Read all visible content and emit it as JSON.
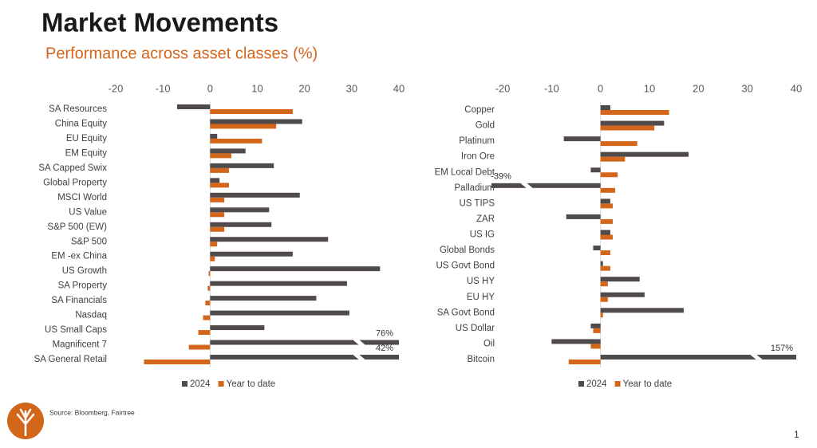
{
  "header": {
    "title": "Market Movements",
    "subtitle": "Performance across asset classes (%)"
  },
  "source": "Source: Bloomberg, Fairtree",
  "page_number": "1",
  "chart_data": [
    {
      "type": "hbar",
      "categories": [
        "SA Resources",
        "China Equity",
        "EU Equity",
        "EM Equity",
        "SA Capped Swix",
        "Global Property",
        "MSCI World",
        "US Value",
        "S&P 500 (EW)",
        "S&P 500",
        "EM -ex China",
        "US Growth",
        "SA Property",
        "SA Financials",
        "Nasdaq",
        "US Small Caps",
        "Magnificent 7",
        "SA General Retail"
      ],
      "series": [
        {
          "name": "2024",
          "color": "#504a4b",
          "values": [
            -7,
            19.5,
            1.5,
            7.5,
            13.5,
            2,
            19,
            12.5,
            13,
            25,
            17.5,
            36,
            29,
            22.5,
            29.5,
            11.5,
            76,
            42
          ],
          "value_labels": [
            null,
            null,
            null,
            null,
            null,
            null,
            null,
            null,
            null,
            null,
            null,
            null,
            null,
            null,
            null,
            null,
            "76%",
            "42%"
          ]
        },
        {
          "name": "Year to date",
          "color": "#d4661c",
          "values": [
            17.5,
            14,
            11,
            4.5,
            4,
            4,
            3,
            3,
            3,
            1.5,
            1,
            -0.3,
            -0.5,
            -1,
            -1.5,
            -2.5,
            -4.5,
            -14
          ]
        }
      ],
      "xlim": [
        -20,
        40
      ],
      "xticks": [
        -20,
        -10,
        0,
        10,
        20,
        30,
        40
      ]
    },
    {
      "type": "hbar",
      "categories": [
        "Copper",
        "Gold",
        "Platinum",
        "Iron Ore",
        "EM Local Debt",
        "Palladium",
        "US TIPS",
        "ZAR",
        "US IG",
        "Global Bonds",
        "US Govt Bond",
        "US HY",
        "EU HY",
        "SA Govt Bond",
        "US Dollar",
        "Oil",
        "Bitcoin"
      ],
      "series": [
        {
          "name": "2024",
          "color": "#504a4b",
          "values": [
            2,
            13,
            -7.5,
            18,
            -2,
            -39,
            2,
            -7,
            2,
            -1.5,
            0.5,
            8,
            9,
            17,
            -2,
            -10,
            157
          ],
          "value_labels": [
            null,
            null,
            null,
            null,
            null,
            "-39%",
            null,
            null,
            null,
            null,
            null,
            null,
            null,
            null,
            null,
            null,
            "157%"
          ]
        },
        {
          "name": "Year to date",
          "color": "#d4661c",
          "values": [
            14,
            11,
            7.5,
            5,
            3.5,
            3,
            2.5,
            2.5,
            2.5,
            2,
            2,
            1.5,
            1.5,
            0.5,
            -1.5,
            -2,
            -6.5
          ]
        }
      ],
      "xlim": [
        -20,
        40
      ],
      "xticks": [
        -20,
        -10,
        0,
        10,
        20,
        30,
        40
      ]
    }
  ]
}
